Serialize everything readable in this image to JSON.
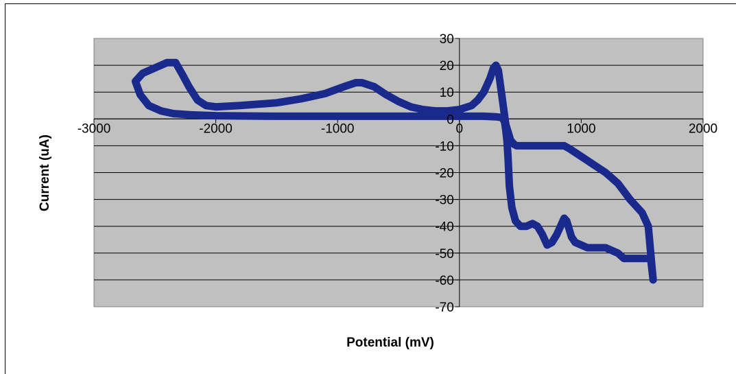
{
  "chart_data": {
    "type": "line",
    "title": "",
    "xlabel": "Potential (mV)",
    "ylabel": "Current (uA)",
    "xlim": [
      -3000,
      2000
    ],
    "ylim": [
      -70,
      30
    ],
    "x_ticks": [
      -3000,
      -2000,
      -1000,
      0,
      1000,
      2000
    ],
    "y_ticks": [
      30,
      20,
      10,
      0,
      -10,
      -20,
      -30,
      -40,
      -50,
      -60,
      -70
    ],
    "grid": true,
    "legend": "none",
    "plot_background": "#c0c0c0",
    "series": [
      {
        "color": "#1a2a8c",
        "x": [
          -2660,
          -2600,
          -2500,
          -2400,
          -2330,
          -2280,
          -2220,
          -2150,
          -2080,
          -2000,
          -1800,
          -1500,
          -1300,
          -1100,
          -950,
          -850,
          -800,
          -700,
          -600,
          -500,
          -400,
          -300,
          -200,
          -100,
          0,
          100,
          150,
          200,
          250,
          280,
          300,
          320,
          350,
          380,
          420,
          450,
          470,
          500,
          550,
          600,
          700,
          800,
          860,
          900,
          1000,
          1100,
          1200,
          1300,
          1400,
          1500,
          1550,
          1560,
          1570,
          1580,
          1590,
          1570,
          1550,
          1500,
          1450,
          1400,
          1350,
          1300,
          1250,
          1200,
          1150,
          1050,
          1000,
          950,
          920,
          880,
          860,
          840,
          800,
          760,
          720,
          680,
          640,
          600,
          550,
          500,
          460,
          430,
          410,
          400,
          390,
          380,
          370,
          350,
          300,
          200,
          0,
          -500,
          -1000,
          -1500,
          -2000,
          -2200,
          -2350,
          -2450,
          -2550,
          -2620,
          -2660
        ],
        "y": [
          14,
          17,
          19,
          21,
          21,
          17,
          12,
          7,
          5,
          4.5,
          5,
          6,
          7.5,
          9.5,
          12,
          13.5,
          13.5,
          12,
          9,
          6.5,
          4.5,
          3.5,
          3,
          3,
          3.5,
          5,
          7,
          10,
          15,
          19,
          20,
          18,
          8,
          -2,
          -8,
          -9.5,
          -10,
          -10,
          -10,
          -10,
          -10,
          -10,
          -10,
          -11,
          -14,
          -17,
          -20,
          -24,
          -30,
          -35,
          -40,
          -45,
          -50,
          -55,
          -60,
          -52,
          -52,
          -52,
          -52,
          -52,
          -52,
          -50,
          -49,
          -48,
          -48,
          -48,
          -47,
          -46,
          -44,
          -38,
          -37,
          -39,
          -43,
          -46,
          -47,
          -43,
          -40,
          -39,
          -40,
          -40,
          -38,
          -33,
          -25,
          -15,
          -8,
          -4,
          -1,
          0.5,
          0.8,
          1,
          1,
          1,
          1,
          1,
          1.2,
          1.5,
          2,
          3,
          5,
          9,
          14
        ]
      }
    ]
  }
}
